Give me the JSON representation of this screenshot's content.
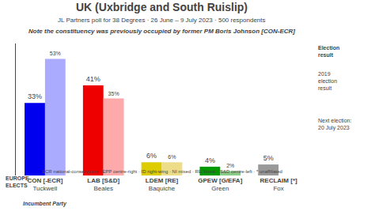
{
  "chart_data": {
    "type": "bar",
    "title": "UK (Uxbridge and South Ruislip)",
    "subtitle": "JL Partners poll for 38 Degrees · 26 June – 9 July 2023 · 500 respondents",
    "categories": [
      "CON [-ECR]\nTuckwell",
      "LAB [S&D]\nBeales",
      "LDEM [RE]\nBaquiche",
      "GPEW [G/EFA]\nGreen",
      "RECLAIM [*]\nFox"
    ],
    "series": [
      {
        "values": [
          33,
          41,
          6,
          4,
          5
        ],
        "value_labels": [
          "33%",
          "41%",
          "6%",
          "4%",
          "5%"
        ],
        "colors": [
          "#0000ee",
          "#ee0000",
          "#ddcc00",
          "#009900",
          "#999999"
        ]
      },
      {
        "values": [
          53,
          35,
          6,
          2,
          null
        ],
        "value_labels": [
          "53%",
          "35%",
          "6%",
          "2%",
          null
        ],
        "colors": [
          "#aaaaff",
          "#ffaaaa",
          "#eedd88",
          "#88cc88",
          null
        ]
      }
    ],
    "ylim": [
      0,
      60
    ],
    "data_labels": true,
    "tick_labels": "x",
    "grid": false,
    "annotations": [
      {
        "text": "Incumbent Party",
        "category": "CON [-ECR]\nTuckwell"
      },
      {
        "text": "Note the constituency was previously occupied by former PM Boris Johnson [CON-ECR]"
      },
      {
        "text": "ECR national-conservative · EPP centre-right · ID right-wing · NI mixed · RE liberal · S&D centre-left · * unaffiliated"
      },
      {
        "text": "EUROPE\nELECTS"
      },
      {
        "text": "Election\nresult"
      },
      {
        "text": "2019\nelection\nresult"
      },
      {
        "text": "Next election:\n20 July 2023"
      }
    ]
  }
}
